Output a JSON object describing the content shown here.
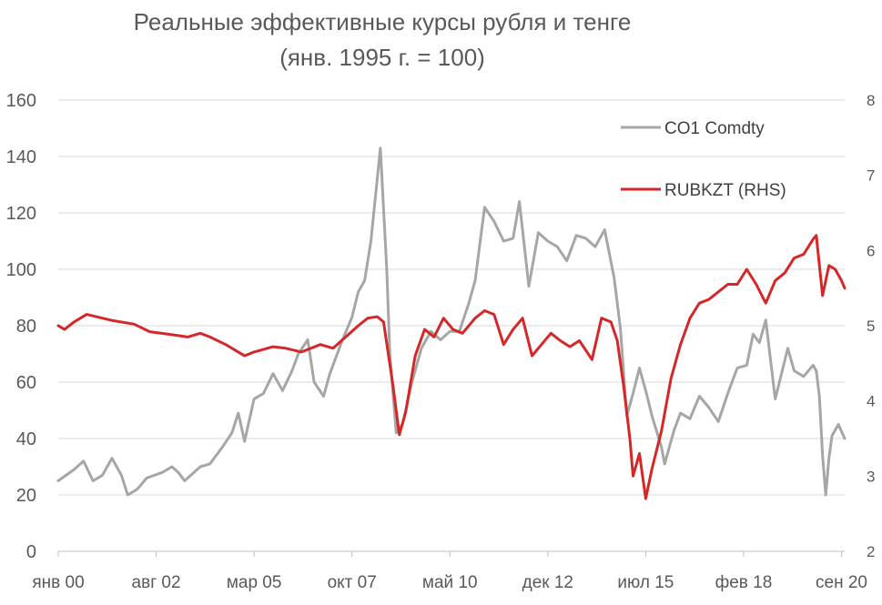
{
  "chart_data": {
    "type": "line",
    "title": "Реальные эффективные курсы рубля и тенге",
    "subtitle": "(янв. 1995 г. = 100)",
    "xlabel": "",
    "ylabel": "",
    "y_left": {
      "range": [
        0,
        160
      ],
      "ticks": [
        "0",
        "20",
        "40",
        "60",
        "80",
        "100",
        "120",
        "140",
        "160"
      ]
    },
    "y_right": {
      "range": [
        2,
        8
      ],
      "ticks": [
        "2",
        "3",
        "4",
        "5",
        "6",
        "7",
        "8"
      ]
    },
    "x_range": [
      "2000-01",
      "2020-10"
    ],
    "x_ticks": [
      {
        "date": "2000-01",
        "label": "янв 00"
      },
      {
        "date": "2002-08",
        "label": "авг 02"
      },
      {
        "date": "2005-03",
        "label": "мар 05"
      },
      {
        "date": "2007-10",
        "label": "окт 07"
      },
      {
        "date": "2010-05",
        "label": "май 10"
      },
      {
        "date": "2012-12",
        "label": "дек 12"
      },
      {
        "date": "2015-07",
        "label": "июл 15"
      },
      {
        "date": "2018-02",
        "label": "фев 18"
      },
      {
        "date": "2020-09",
        "label": "сен 20"
      }
    ],
    "grid": "horizontal",
    "legend_position": "top-right",
    "series": [
      {
        "name": "CO1 Comdty",
        "axis": "left",
        "color": "#a6a6a6",
        "points": [
          [
            "2000-01",
            25
          ],
          [
            "2000-06",
            29
          ],
          [
            "2000-09",
            32
          ],
          [
            "2000-12",
            25
          ],
          [
            "2001-03",
            27
          ],
          [
            "2001-06",
            33
          ],
          [
            "2001-09",
            27
          ],
          [
            "2001-11",
            20
          ],
          [
            "2002-02",
            22
          ],
          [
            "2002-05",
            26
          ],
          [
            "2002-10",
            28
          ],
          [
            "2003-01",
            30
          ],
          [
            "2003-03",
            28
          ],
          [
            "2003-05",
            25
          ],
          [
            "2003-10",
            30
          ],
          [
            "2004-01",
            31
          ],
          [
            "2004-05",
            37
          ],
          [
            "2004-08",
            42
          ],
          [
            "2004-10",
            49
          ],
          [
            "2004-12",
            39
          ],
          [
            "2005-03",
            54
          ],
          [
            "2005-06",
            56
          ],
          [
            "2005-09",
            63
          ],
          [
            "2005-12",
            57
          ],
          [
            "2006-03",
            64
          ],
          [
            "2006-05",
            70
          ],
          [
            "2006-08",
            75
          ],
          [
            "2006-10",
            60
          ],
          [
            "2007-01",
            55
          ],
          [
            "2007-03",
            63
          ],
          [
            "2007-07",
            75
          ],
          [
            "2007-10",
            83
          ],
          [
            "2007-12",
            92
          ],
          [
            "2008-02",
            96
          ],
          [
            "2008-04",
            110
          ],
          [
            "2008-07",
            143
          ],
          [
            "2008-09",
            100
          ],
          [
            "2008-10",
            70
          ],
          [
            "2008-12",
            42
          ],
          [
            "2009-02",
            45
          ],
          [
            "2009-05",
            60
          ],
          [
            "2009-08",
            72
          ],
          [
            "2009-11",
            78
          ],
          [
            "2010-02",
            75
          ],
          [
            "2010-05",
            78
          ],
          [
            "2010-08",
            78
          ],
          [
            "2010-11",
            88
          ],
          [
            "2011-01",
            96
          ],
          [
            "2011-04",
            122
          ],
          [
            "2011-07",
            117
          ],
          [
            "2011-10",
            110
          ],
          [
            "2012-01",
            111
          ],
          [
            "2012-03",
            124
          ],
          [
            "2012-06",
            94
          ],
          [
            "2012-09",
            113
          ],
          [
            "2012-12",
            110
          ],
          [
            "2013-03",
            108
          ],
          [
            "2013-06",
            103
          ],
          [
            "2013-09",
            112
          ],
          [
            "2013-12",
            111
          ],
          [
            "2014-03",
            108
          ],
          [
            "2014-06",
            114
          ],
          [
            "2014-09",
            97
          ],
          [
            "2014-11",
            79
          ],
          [
            "2015-01",
            48
          ],
          [
            "2015-03",
            56
          ],
          [
            "2015-05",
            65
          ],
          [
            "2015-07",
            57
          ],
          [
            "2015-09",
            48
          ],
          [
            "2015-12",
            37
          ],
          [
            "2016-01",
            31
          ],
          [
            "2016-04",
            43
          ],
          [
            "2016-06",
            49
          ],
          [
            "2016-09",
            47
          ],
          [
            "2016-12",
            55
          ],
          [
            "2017-03",
            51
          ],
          [
            "2017-06",
            46
          ],
          [
            "2017-09",
            56
          ],
          [
            "2017-12",
            65
          ],
          [
            "2018-03",
            66
          ],
          [
            "2018-05",
            77
          ],
          [
            "2018-07",
            74
          ],
          [
            "2018-09",
            82
          ],
          [
            "2018-12",
            54
          ],
          [
            "2019-02",
            63
          ],
          [
            "2019-04",
            72
          ],
          [
            "2019-06",
            64
          ],
          [
            "2019-09",
            62
          ],
          [
            "2019-12",
            66
          ],
          [
            "2020-01",
            64
          ],
          [
            "2020-02",
            55
          ],
          [
            "2020-03",
            34
          ],
          [
            "2020-04",
            20
          ],
          [
            "2020-05",
            33
          ],
          [
            "2020-06",
            41
          ],
          [
            "2020-08",
            45
          ],
          [
            "2020-10",
            40
          ]
        ]
      },
      {
        "name": "RUBKZT (RHS)",
        "axis": "right",
        "color": "#d62728",
        "points": [
          [
            "2000-01",
            5.0
          ],
          [
            "2000-03",
            4.95
          ],
          [
            "2000-06",
            5.05
          ],
          [
            "2000-10",
            5.15
          ],
          [
            "2001-01",
            5.12
          ],
          [
            "2001-06",
            5.07
          ],
          [
            "2002-01",
            5.02
          ],
          [
            "2002-06",
            4.92
          ],
          [
            "2003-01",
            4.88
          ],
          [
            "2003-06",
            4.85
          ],
          [
            "2003-10",
            4.9
          ],
          [
            "2004-01",
            4.85
          ],
          [
            "2004-06",
            4.75
          ],
          [
            "2004-12",
            4.6
          ],
          [
            "2005-03",
            4.65
          ],
          [
            "2005-09",
            4.72
          ],
          [
            "2006-01",
            4.7
          ],
          [
            "2006-06",
            4.65
          ],
          [
            "2006-12",
            4.75
          ],
          [
            "2007-04",
            4.7
          ],
          [
            "2007-08",
            4.85
          ],
          [
            "2007-12",
            5.0
          ],
          [
            "2008-03",
            5.1
          ],
          [
            "2008-06",
            5.12
          ],
          [
            "2008-08",
            5.05
          ],
          [
            "2008-11",
            4.2
          ],
          [
            "2009-01",
            3.55
          ],
          [
            "2009-03",
            3.85
          ],
          [
            "2009-06",
            4.6
          ],
          [
            "2009-09",
            4.95
          ],
          [
            "2009-12",
            4.85
          ],
          [
            "2010-03",
            5.1
          ],
          [
            "2010-06",
            4.95
          ],
          [
            "2010-09",
            4.9
          ],
          [
            "2011-01",
            5.1
          ],
          [
            "2011-04",
            5.2
          ],
          [
            "2011-07",
            5.15
          ],
          [
            "2011-10",
            4.75
          ],
          [
            "2012-01",
            4.95
          ],
          [
            "2012-04",
            5.1
          ],
          [
            "2012-07",
            4.6
          ],
          [
            "2012-10",
            4.75
          ],
          [
            "2013-01",
            4.9
          ],
          [
            "2013-04",
            4.8
          ],
          [
            "2013-07",
            4.72
          ],
          [
            "2013-10",
            4.8
          ],
          [
            "2014-02",
            4.55
          ],
          [
            "2014-05",
            5.1
          ],
          [
            "2014-08",
            5.05
          ],
          [
            "2014-10",
            4.8
          ],
          [
            "2014-12",
            4.2
          ],
          [
            "2015-02",
            3.5
          ],
          [
            "2015-03",
            3.0
          ],
          [
            "2015-05",
            3.3
          ],
          [
            "2015-07",
            2.7
          ],
          [
            "2015-09",
            3.1
          ],
          [
            "2015-12",
            3.6
          ],
          [
            "2016-03",
            4.3
          ],
          [
            "2016-06",
            4.75
          ],
          [
            "2016-09",
            5.1
          ],
          [
            "2016-12",
            5.3
          ],
          [
            "2017-03",
            5.35
          ],
          [
            "2017-06",
            5.45
          ],
          [
            "2017-09",
            5.55
          ],
          [
            "2017-12",
            5.55
          ],
          [
            "2018-03",
            5.75
          ],
          [
            "2018-06",
            5.55
          ],
          [
            "2018-09",
            5.3
          ],
          [
            "2018-12",
            5.6
          ],
          [
            "2019-03",
            5.7
          ],
          [
            "2019-06",
            5.9
          ],
          [
            "2019-09",
            5.95
          ],
          [
            "2019-12",
            6.15
          ],
          [
            "2020-01",
            6.2
          ],
          [
            "2020-03",
            5.4
          ],
          [
            "2020-05",
            5.8
          ],
          [
            "2020-07",
            5.75
          ],
          [
            "2020-09",
            5.6
          ],
          [
            "2020-10",
            5.5
          ]
        ]
      }
    ]
  }
}
